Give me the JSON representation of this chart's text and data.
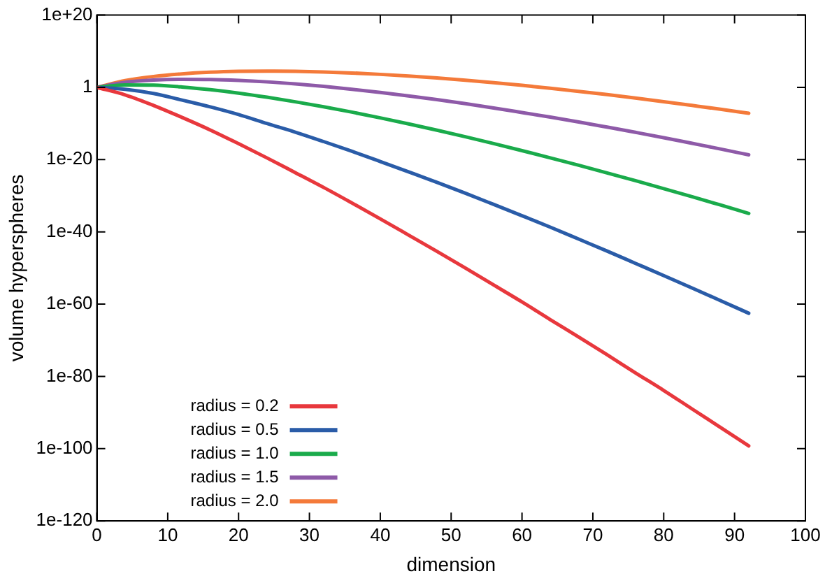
{
  "chart_data": {
    "type": "line",
    "xlabel": "dimension",
    "ylabel": "volume hyperspheres",
    "x": [
      0,
      4,
      8,
      12,
      16,
      20,
      24,
      28,
      32,
      36,
      40,
      44,
      48,
      52,
      56,
      60,
      64,
      68,
      72,
      76,
      80,
      84,
      88,
      92
    ],
    "series": [
      {
        "name": "radius = 0.2",
        "color": "#e8383d",
        "values": [
          1,
          0.008,
          1e-05,
          5e-09,
          1.6e-12,
          2.5e-16,
          3e-20,
          2.5e-24,
          2e-28,
          1e-32,
          4e-37,
          1.3e-41,
          4e-46,
          1e-50,
          2e-55,
          4e-60,
          5e-65,
          8e-70,
          1e-74,
          1e-79,
          1.3e-84,
          1e-89,
          8e-95,
          6e-100
        ]
      },
      {
        "name": "radius = 0.5",
        "color": "#2a5ca8",
        "values": [
          1,
          0.3,
          0.02,
          0.0003,
          4e-06,
          3e-08,
          1e-10,
          4e-13,
          1e-15,
          2e-18,
          3e-21,
          4e-24,
          5e-27,
          5e-30,
          4e-33,
          3e-36,
          2e-39,
          1e-42,
          5e-46,
          2e-49,
          8e-53,
          3e-56,
          1e-59,
          3e-63
        ]
      },
      {
        "name": "radius = 1.0",
        "color": "#1aab4b",
        "values": [
          1,
          4.9,
          4.1,
          1.3,
          0.23,
          0.026,
          0.0019,
          0.0001,
          4.3e-06,
          1.4e-07,
          3.6e-09,
          7.7e-11,
          1.4e-12,
          2.1e-14,
          2.7e-16,
          3.1e-18,
          3.1e-20,
          2.7e-22,
          2.1e-24,
          1.5e-26,
          9.4e-29,
          5.4e-31,
          2.8e-33,
          1.3e-35
        ]
      },
      {
        "name": "radius = 1.5",
        "color": "#8e5aa8",
        "values": [
          1,
          25,
          104,
          173,
          155,
          86,
          33,
          8.9,
          1.9,
          0.3,
          0.04,
          0.0043,
          0.00039,
          3e-05,
          2e-06,
          1.1e-07,
          5.7e-09,
          2.6e-10,
          1e-11,
          3.6e-13,
          1.2e-14,
          3.3e-16,
          8.9e-18,
          2.1e-19
        ]
      },
      {
        "name": "radius = 2.0",
        "color": "#f47a3a",
        "values": [
          1,
          79,
          1040,
          5470,
          15400,
          27100,
          32400,
          28100,
          18500,
          9550,
          3960,
          1350,
          387,
          94,
          20,
          3.6,
          0.57,
          0.08,
          0.01,
          0.0011,
          0.00011,
          1e-05,
          8.7e-07,
          6.7e-08
        ]
      }
    ],
    "xlim": [
      0,
      100
    ],
    "xticks": [
      0,
      10,
      20,
      30,
      40,
      50,
      60,
      70,
      80,
      90,
      100
    ],
    "ylim": [
      1e-120,
      1e+20
    ],
    "yticks": [
      {
        "value": 1e-120,
        "label": "1e-120"
      },
      {
        "value": 1e-100,
        "label": "1e-100"
      },
      {
        "value": 1e-80,
        "label": "1e-80"
      },
      {
        "value": 1e-60,
        "label": "1e-60"
      },
      {
        "value": 1e-40,
        "label": "1e-40"
      },
      {
        "value": 1e-20,
        "label": "1e-20"
      },
      1,
      {
        "value": 1e+20,
        "label": "1e+20"
      }
    ],
    "log": "y",
    "grid": false,
    "legend": "bottom left",
    "marker": "none",
    "line_style": "solid"
  }
}
